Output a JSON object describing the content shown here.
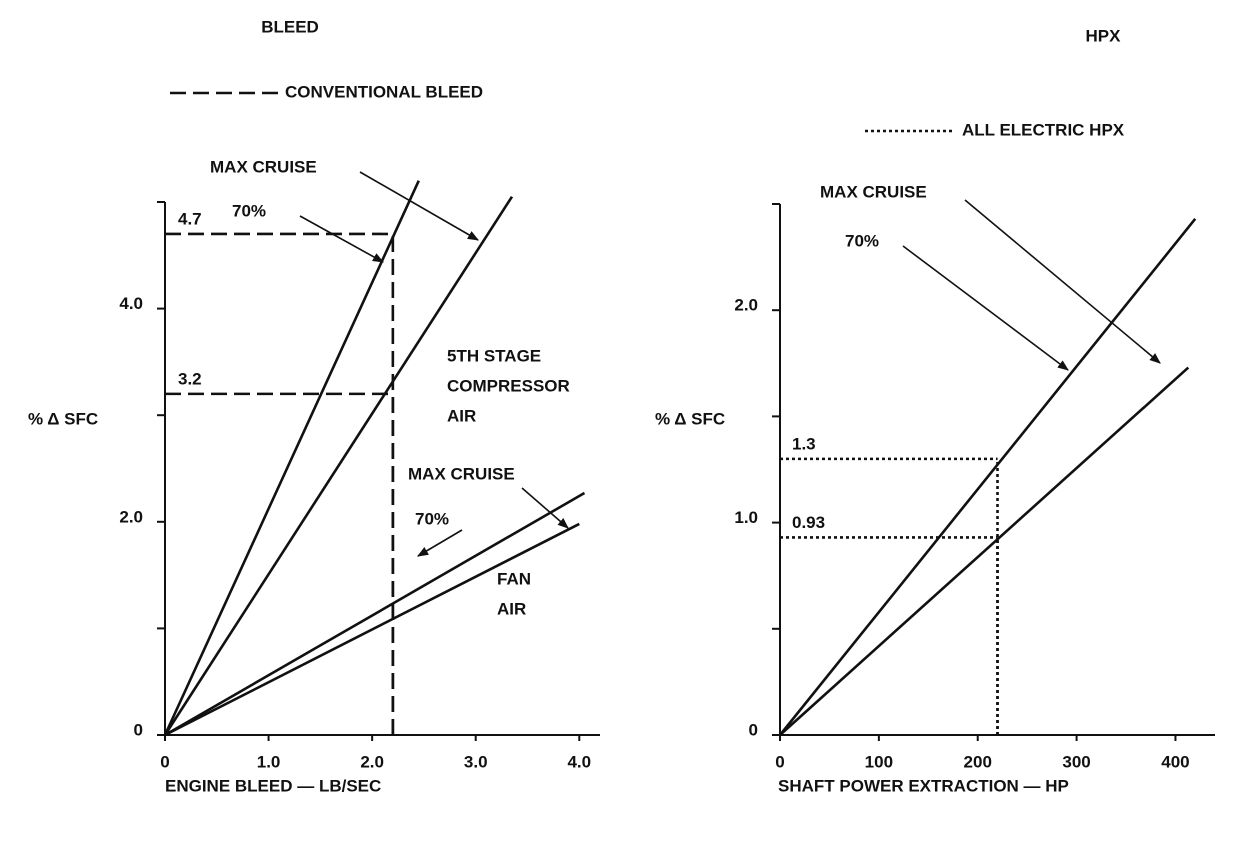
{
  "chart_data": [
    {
      "type": "line",
      "title": "BLEED",
      "xlabel": "ENGINE BLEED — LB/SEC",
      "ylabel": "% Δ SFC",
      "xlim": [
        0,
        4.2
      ],
      "ylim": [
        0,
        5
      ],
      "xticks": [
        0,
        {
          "value": 1,
          "label": "1.0"
        },
        {
          "value": 2,
          "label": "2.0"
        },
        {
          "value": 3,
          "label": "3.0"
        },
        {
          "value": 4,
          "label": "4.0"
        }
      ],
      "yticks": [
        0,
        {
          "value": 2,
          "label": "2.0"
        },
        {
          "value": 4,
          "label": "4.0"
        }
      ],
      "minor_yticks": [
        1,
        3,
        5
      ],
      "color": "#111111",
      "series": [
        {
          "x": [
            0,
            2.45
          ],
          "values": [
            0,
            5.2
          ]
        },
        {
          "x": [
            0,
            3.35
          ],
          "values": [
            0,
            5.05
          ]
        },
        {
          "x": [
            0,
            4.05
          ],
          "values": [
            0,
            2.27
          ]
        },
        {
          "x": [
            0,
            4.0
          ],
          "values": [
            0,
            1.98
          ]
        }
      ],
      "reference": {
        "name": "CONVENTIONAL BLEED",
        "style": "dashed",
        "x": 2.2,
        "y": [
          4.7,
          3.2
        ]
      },
      "annotations": [
        {
          "lines": [
            "MAX CRUISE"
          ]
        },
        {
          "lines": [
            "70%"
          ]
        },
        {
          "lines": [
            "5TH STAGE",
            "COMPRESSOR",
            "AIR"
          ]
        },
        {
          "lines": [
            "MAX CRUISE"
          ]
        },
        {
          "lines": [
            "70%"
          ]
        },
        {
          "lines": [
            "FAN",
            "AIR"
          ]
        }
      ]
    },
    {
      "type": "line",
      "title": "HPX",
      "xlabel": "SHAFT POWER EXTRACTION — HP",
      "ylabel": "% Δ SFC",
      "xlim": [
        0,
        440
      ],
      "ylim": [
        0,
        2.5
      ],
      "xticks": [
        0,
        100,
        200,
        300,
        400
      ],
      "yticks": [
        0,
        {
          "value": 1,
          "label": "1.0"
        },
        {
          "value": 2,
          "label": "2.0"
        }
      ],
      "minor_yticks": [
        0.5,
        1.5,
        2.5
      ],
      "color": "#111111",
      "series": [
        {
          "x": [
            0,
            420
          ],
          "values": [
            0,
            2.43
          ]
        },
        {
          "x": [
            0,
            413
          ],
          "values": [
            0,
            1.73
          ]
        }
      ],
      "reference": {
        "name": "ALL ELECTRIC HPX",
        "style": "dotted",
        "x": 220,
        "y": [
          1.3,
          0.93
        ]
      },
      "annotations": [
        {
          "lines": [
            "MAX CRUISE"
          ]
        },
        {
          "lines": [
            "70%"
          ]
        }
      ]
    }
  ]
}
